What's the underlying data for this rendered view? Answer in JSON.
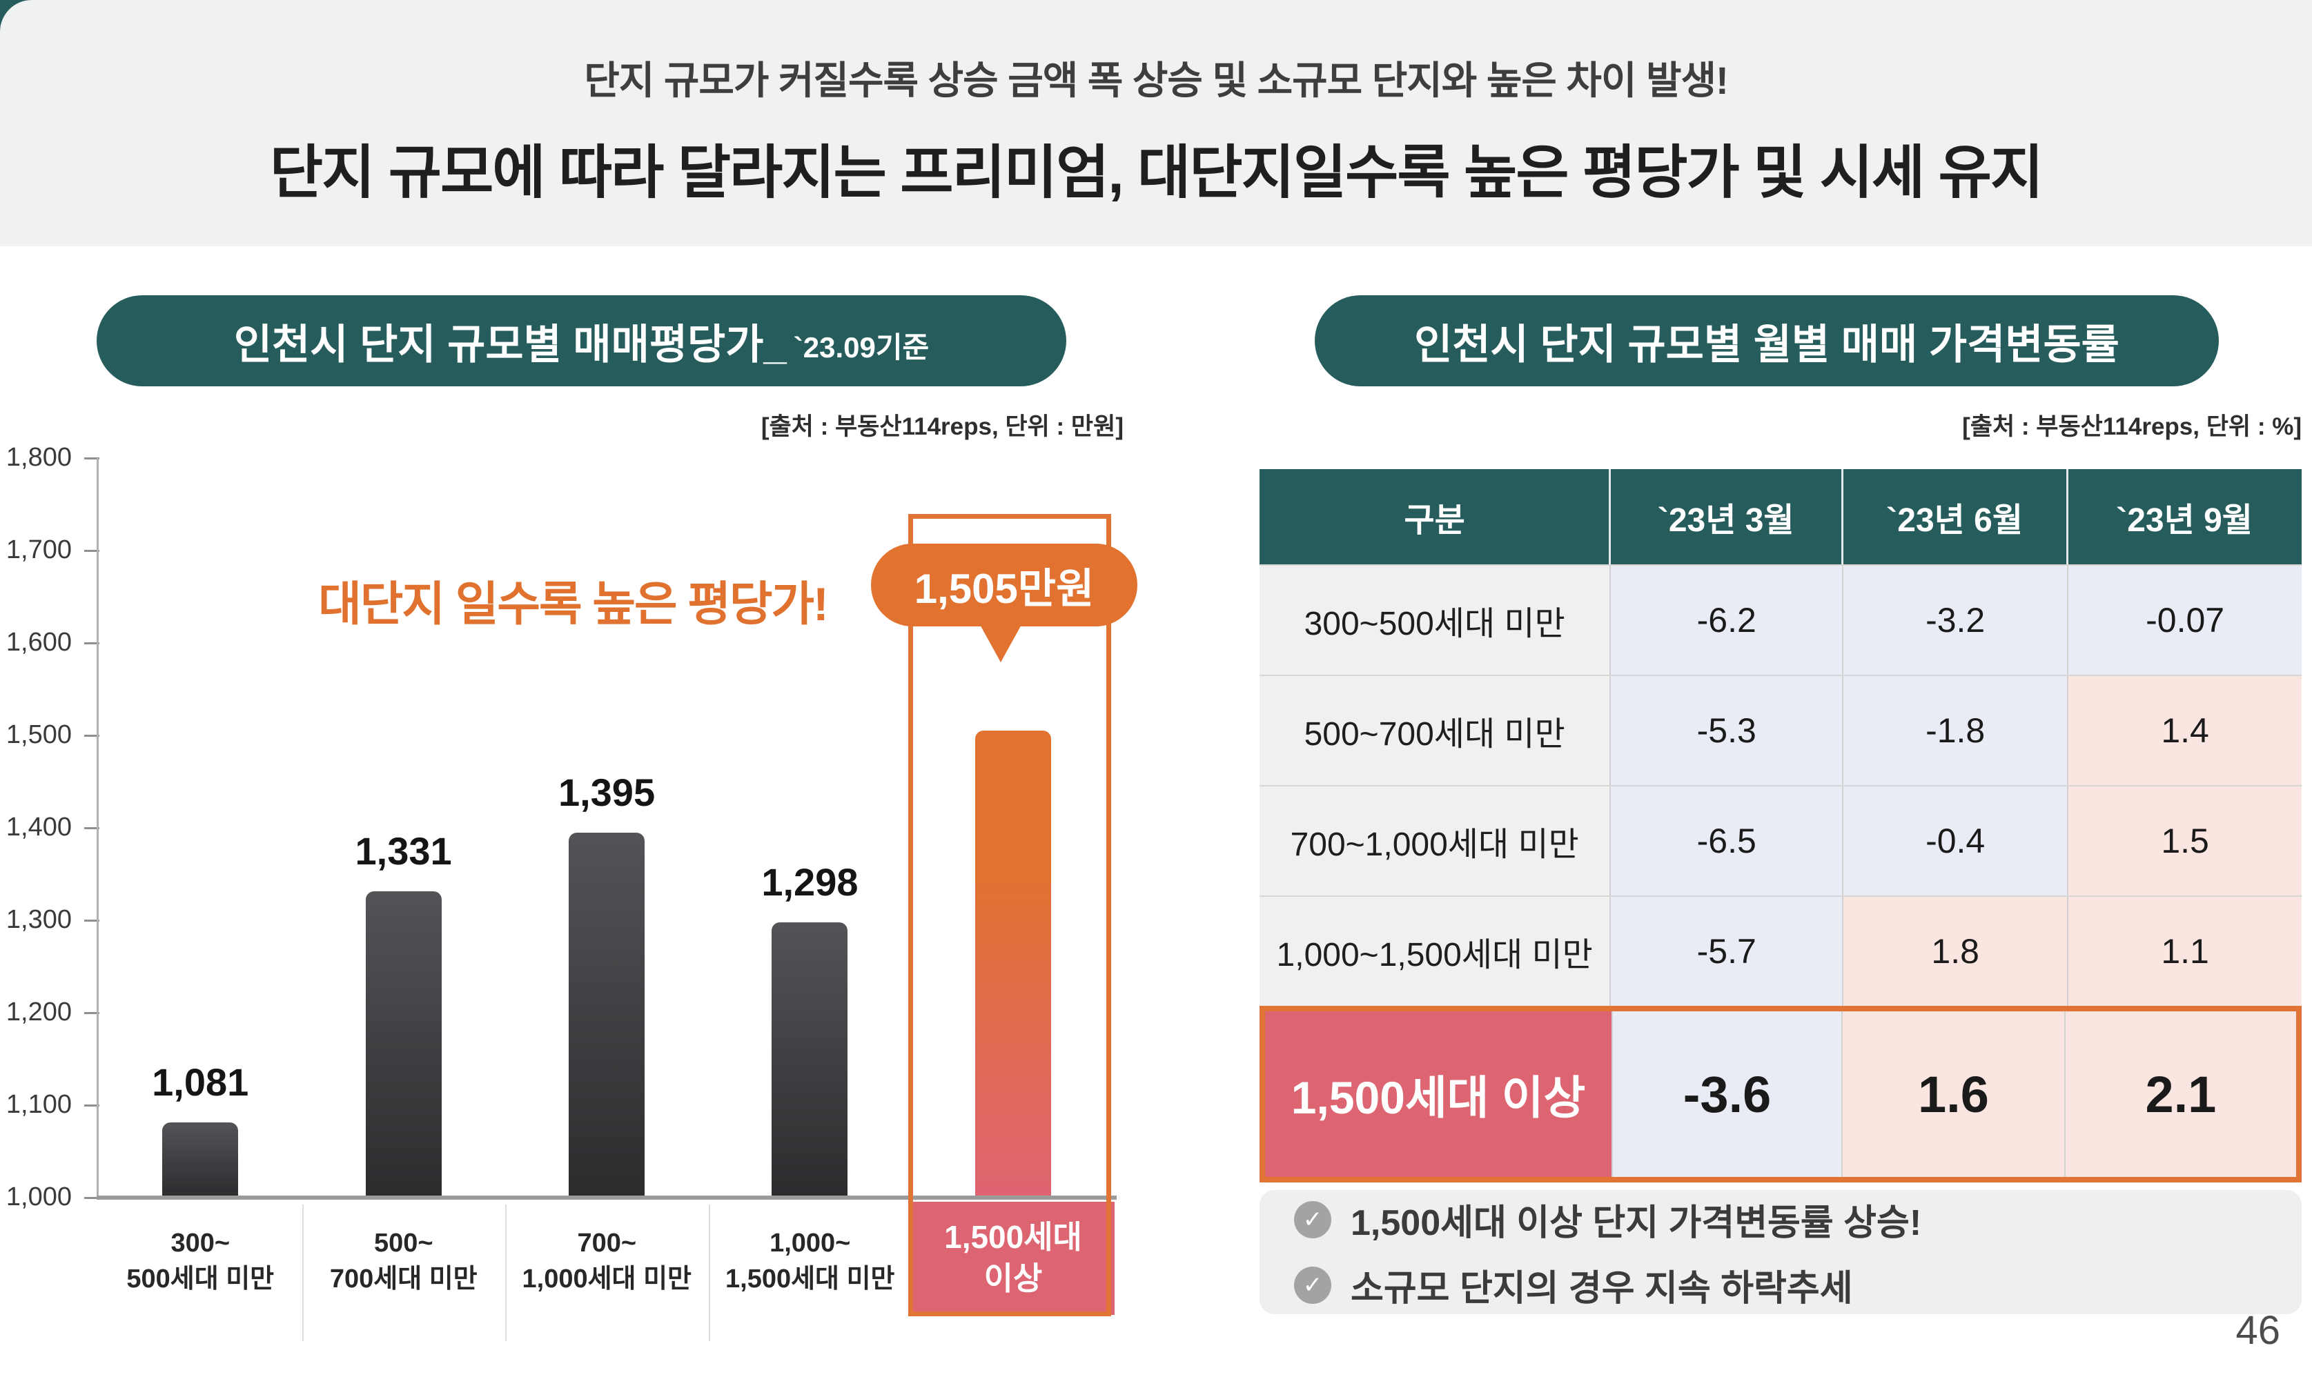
{
  "header": {
    "subtitle": "단지 규모가 커질수록 상승 금액 폭 상승 및 소규모 단지와 높은 차이 발생!",
    "title": "단지 규모에 따라 달라지는 프리미엄, 대단지일수록 높은 평당가 및 시세 유지"
  },
  "left_panel": {
    "title": "인천시 단지 규모별 매매평당가_",
    "title_suffix": "`23.09기준",
    "source": "[출처 : 부동산114reps, 단위 : 만원]",
    "annotation": "대단지 일수록 높은 평당가!",
    "callout": "1,505만원"
  },
  "right_panel": {
    "title": "인천시 단지 규모별 월별 매매 가격변동률",
    "source": "[출처 : 부동산114reps, 단위 : %]"
  },
  "chart_data": [
    {
      "type": "bar",
      "title": "인천시 단지 규모별 매매평당가 (`23.09기준)",
      "ylabel": "만원",
      "categories": [
        [
          "300~",
          "500세대 미만"
        ],
        [
          "500~",
          "700세대 미만"
        ],
        [
          "700~",
          "1,000세대 미만"
        ],
        [
          "1,000~",
          "1,500세대 미만"
        ],
        [
          "1,500세대",
          "이상"
        ]
      ],
      "values": [
        1081,
        1331,
        1395,
        1298,
        1505
      ],
      "value_labels": [
        "1,081",
        "1,331",
        "1,395",
        "1,298",
        "1,505"
      ],
      "ylim": [
        1000,
        1800
      ],
      "ytick_step": 100,
      "highlight_index": 4,
      "grid": false,
      "legend": false
    },
    {
      "type": "table",
      "title": "인천시 단지 규모별 월별 매매 가격변동률",
      "unit": "%",
      "headers": [
        "구분",
        "`23년 3월",
        "`23년 6월",
        "`23년 9월"
      ],
      "rows": [
        {
          "label": "300~500세대 미만",
          "values": [
            "-6.2",
            "-3.2",
            "-0.07"
          ],
          "highlight": false
        },
        {
          "label": "500~700세대 미만",
          "values": [
            "-5.3",
            "-1.8",
            "1.4"
          ],
          "highlight": false
        },
        {
          "label": "700~1,000세대 미만",
          "values": [
            "-6.5",
            "-0.4",
            "1.5"
          ],
          "highlight": false
        },
        {
          "label": "1,000~1,500세대 미만",
          "values": [
            "-5.7",
            "1.8",
            "1.1"
          ],
          "highlight": false
        },
        {
          "label": "1,500세대 이상",
          "values": [
            "-3.6",
            "1.6",
            "2.1"
          ],
          "highlight": true
        }
      ]
    }
  ],
  "notes": [
    "1,500세대 이상 단지 가격변동률 상승!",
    "소규모 단지의 경우 지속 하락추세"
  ],
  "page_number": "46",
  "colors": {
    "teal": "#275C5D",
    "orange": "#E1722F",
    "orange_border": "#E17334",
    "rose": "#DD6471",
    "cell_negative": "#E9EBF5",
    "cell_positive": "#FBE5E1",
    "band_gray": "#F0F1F1",
    "bar_gray_top": "#535457",
    "bar_gray_bottom": "#2B2C2E"
  }
}
